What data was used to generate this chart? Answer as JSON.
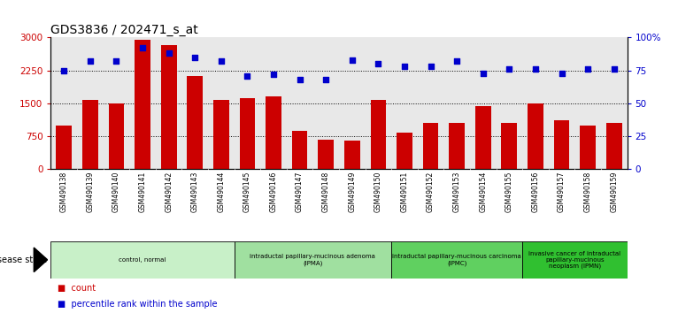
{
  "title": "GDS3836 / 202471_s_at",
  "samples": [
    "GSM490138",
    "GSM490139",
    "GSM490140",
    "GSM490141",
    "GSM490142",
    "GSM490143",
    "GSM490144",
    "GSM490145",
    "GSM490146",
    "GSM490147",
    "GSM490148",
    "GSM490149",
    "GSM490150",
    "GSM490151",
    "GSM490152",
    "GSM490153",
    "GSM490154",
    "GSM490155",
    "GSM490156",
    "GSM490157",
    "GSM490158",
    "GSM490159"
  ],
  "counts": [
    1000,
    1570,
    1500,
    2950,
    2830,
    2130,
    1580,
    1610,
    1660,
    870,
    660,
    650,
    1580,
    840,
    1060,
    1060,
    1430,
    1060,
    1500,
    1110,
    1000,
    1060
  ],
  "percentiles": [
    75,
    82,
    82,
    92,
    88,
    85,
    82,
    71,
    72,
    68,
    68,
    83,
    80,
    78,
    78,
    82,
    73,
    76,
    76,
    73,
    76,
    76
  ],
  "groups": [
    {
      "label": "control, normal",
      "start": 0,
      "end": 7,
      "color": "#c8f0c8"
    },
    {
      "label": "intraductal papillary-mucinous adenoma\n(IPMA)",
      "start": 7,
      "end": 13,
      "color": "#a0e0a0"
    },
    {
      "label": "intraductal papillary-mucinous carcinoma\n(IPMC)",
      "start": 13,
      "end": 18,
      "color": "#60d060"
    },
    {
      "label": "invasive cancer of intraductal\npapillary-mucinous\nneoplasm (IPMN)",
      "start": 18,
      "end": 22,
      "color": "#30c030"
    }
  ],
  "bar_color": "#cc0000",
  "dot_color": "#0000cc",
  "ylim_left": [
    0,
    3000
  ],
  "ylim_right": [
    0,
    100
  ],
  "yticks_left": [
    0,
    750,
    1500,
    2250,
    3000
  ],
  "yticks_right": [
    0,
    25,
    50,
    75,
    100
  ],
  "ytick_labels_right": [
    "0",
    "25",
    "50",
    "75",
    "100%"
  ],
  "hlines": [
    750,
    1500,
    2250
  ],
  "plot_bg_color": "#e8e8e8",
  "title_fontsize": 10,
  "tick_label_color_left": "#cc0000",
  "tick_label_color_right": "#0000cc"
}
